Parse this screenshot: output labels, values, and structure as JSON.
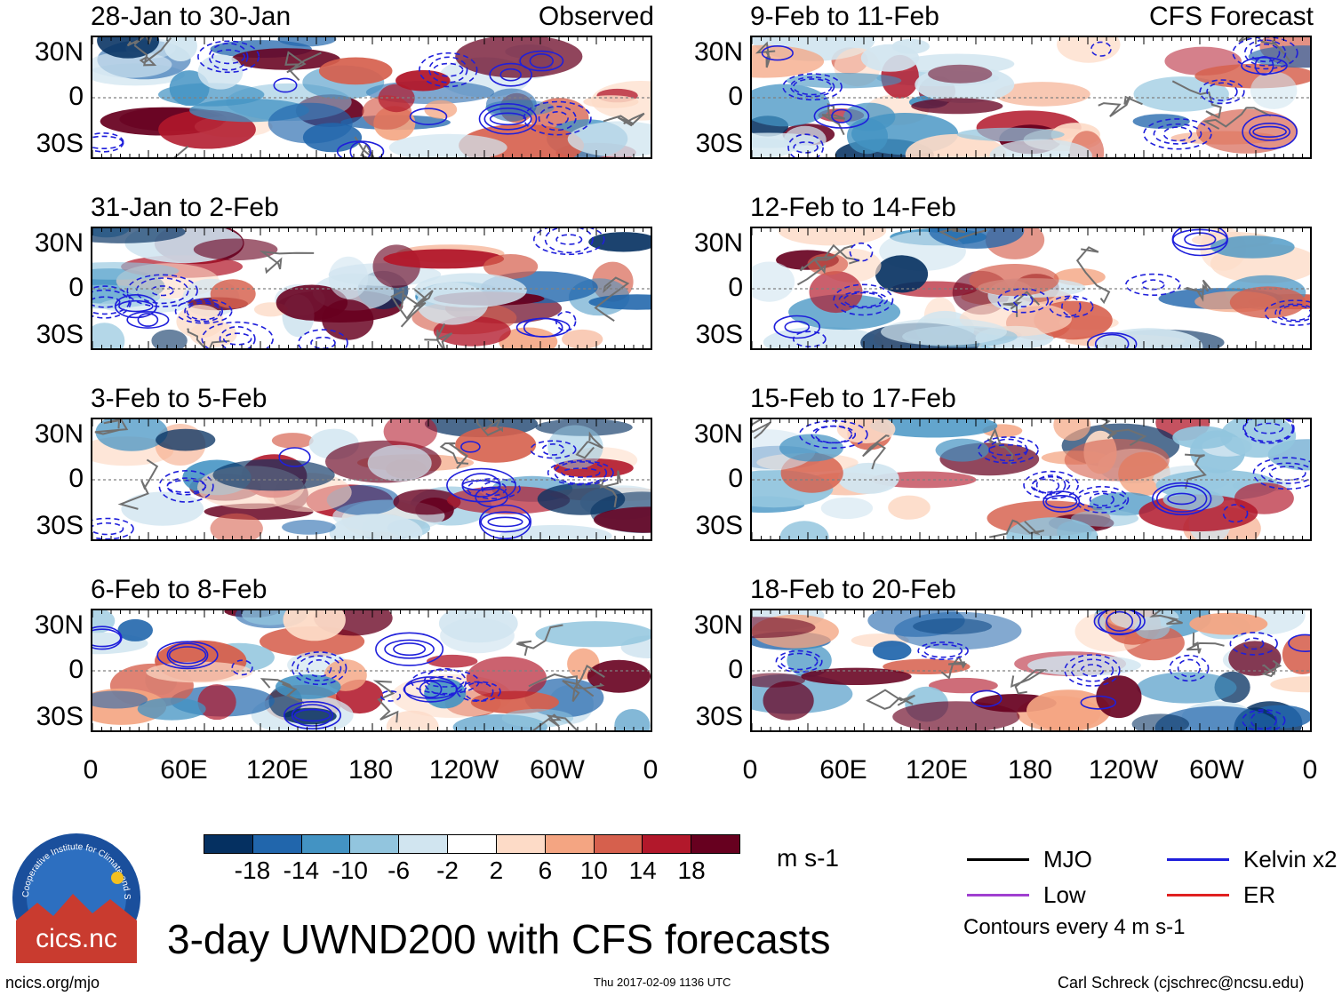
{
  "chart_data": {
    "type": "heatmap",
    "title": "3-day UWND200 with CFS forecasts",
    "variable": "UWND200",
    "units": "m s-1",
    "observed_label": "Observed",
    "forecast_label": "CFS Forecast",
    "xticks": [
      "0",
      "60E",
      "120E",
      "180",
      "120W",
      "60W",
      "0"
    ],
    "yticks": [
      "30N",
      "0",
      "30S"
    ],
    "colorbar": {
      "labels": [
        "-18",
        "-14",
        "-10",
        "-6",
        "-2",
        "2",
        "6",
        "10",
        "14",
        "18"
      ],
      "colors": [
        "#053061",
        "#2166ac",
        "#4393c3",
        "#92c5de",
        "#d1e5f0",
        "#ffffff",
        "#fddbc7",
        "#f4a582",
        "#d6604d",
        "#b2182b",
        "#67001f"
      ]
    },
    "panels": [
      {
        "title": "28-Jan to 30-Jan",
        "kind": "observed"
      },
      {
        "title": "31-Jan to 2-Feb",
        "kind": "observed"
      },
      {
        "title": "3-Feb to 5-Feb",
        "kind": "observed"
      },
      {
        "title": "6-Feb to 8-Feb",
        "kind": "observed"
      },
      {
        "title": "9-Feb to 11-Feb",
        "kind": "forecast"
      },
      {
        "title": "12-Feb to 14-Feb",
        "kind": "forecast"
      },
      {
        "title": "15-Feb to 17-Feb",
        "kind": "forecast"
      },
      {
        "title": "18-Feb to 20-Feb",
        "kind": "forecast"
      }
    ],
    "legend": [
      {
        "label": "MJO",
        "color": "#000000"
      },
      {
        "label": "Kelvin x2",
        "color": "#1f1fdb"
      },
      {
        "label": "Low",
        "color": "#a040d0"
      },
      {
        "label": "ER",
        "color": "#e02020"
      }
    ],
    "contour_note": "Contours every 4 m s-1"
  },
  "footer": {
    "left": "ncics.org/mjo",
    "center": "Thu 2017-02-09 1136 UTC",
    "right": "Carl Schreck (cjschrec@ncsu.edu)",
    "logo_text": "cics.nc",
    "logo_ring_text": "Cooperative Institute for Climate and Satellites"
  }
}
